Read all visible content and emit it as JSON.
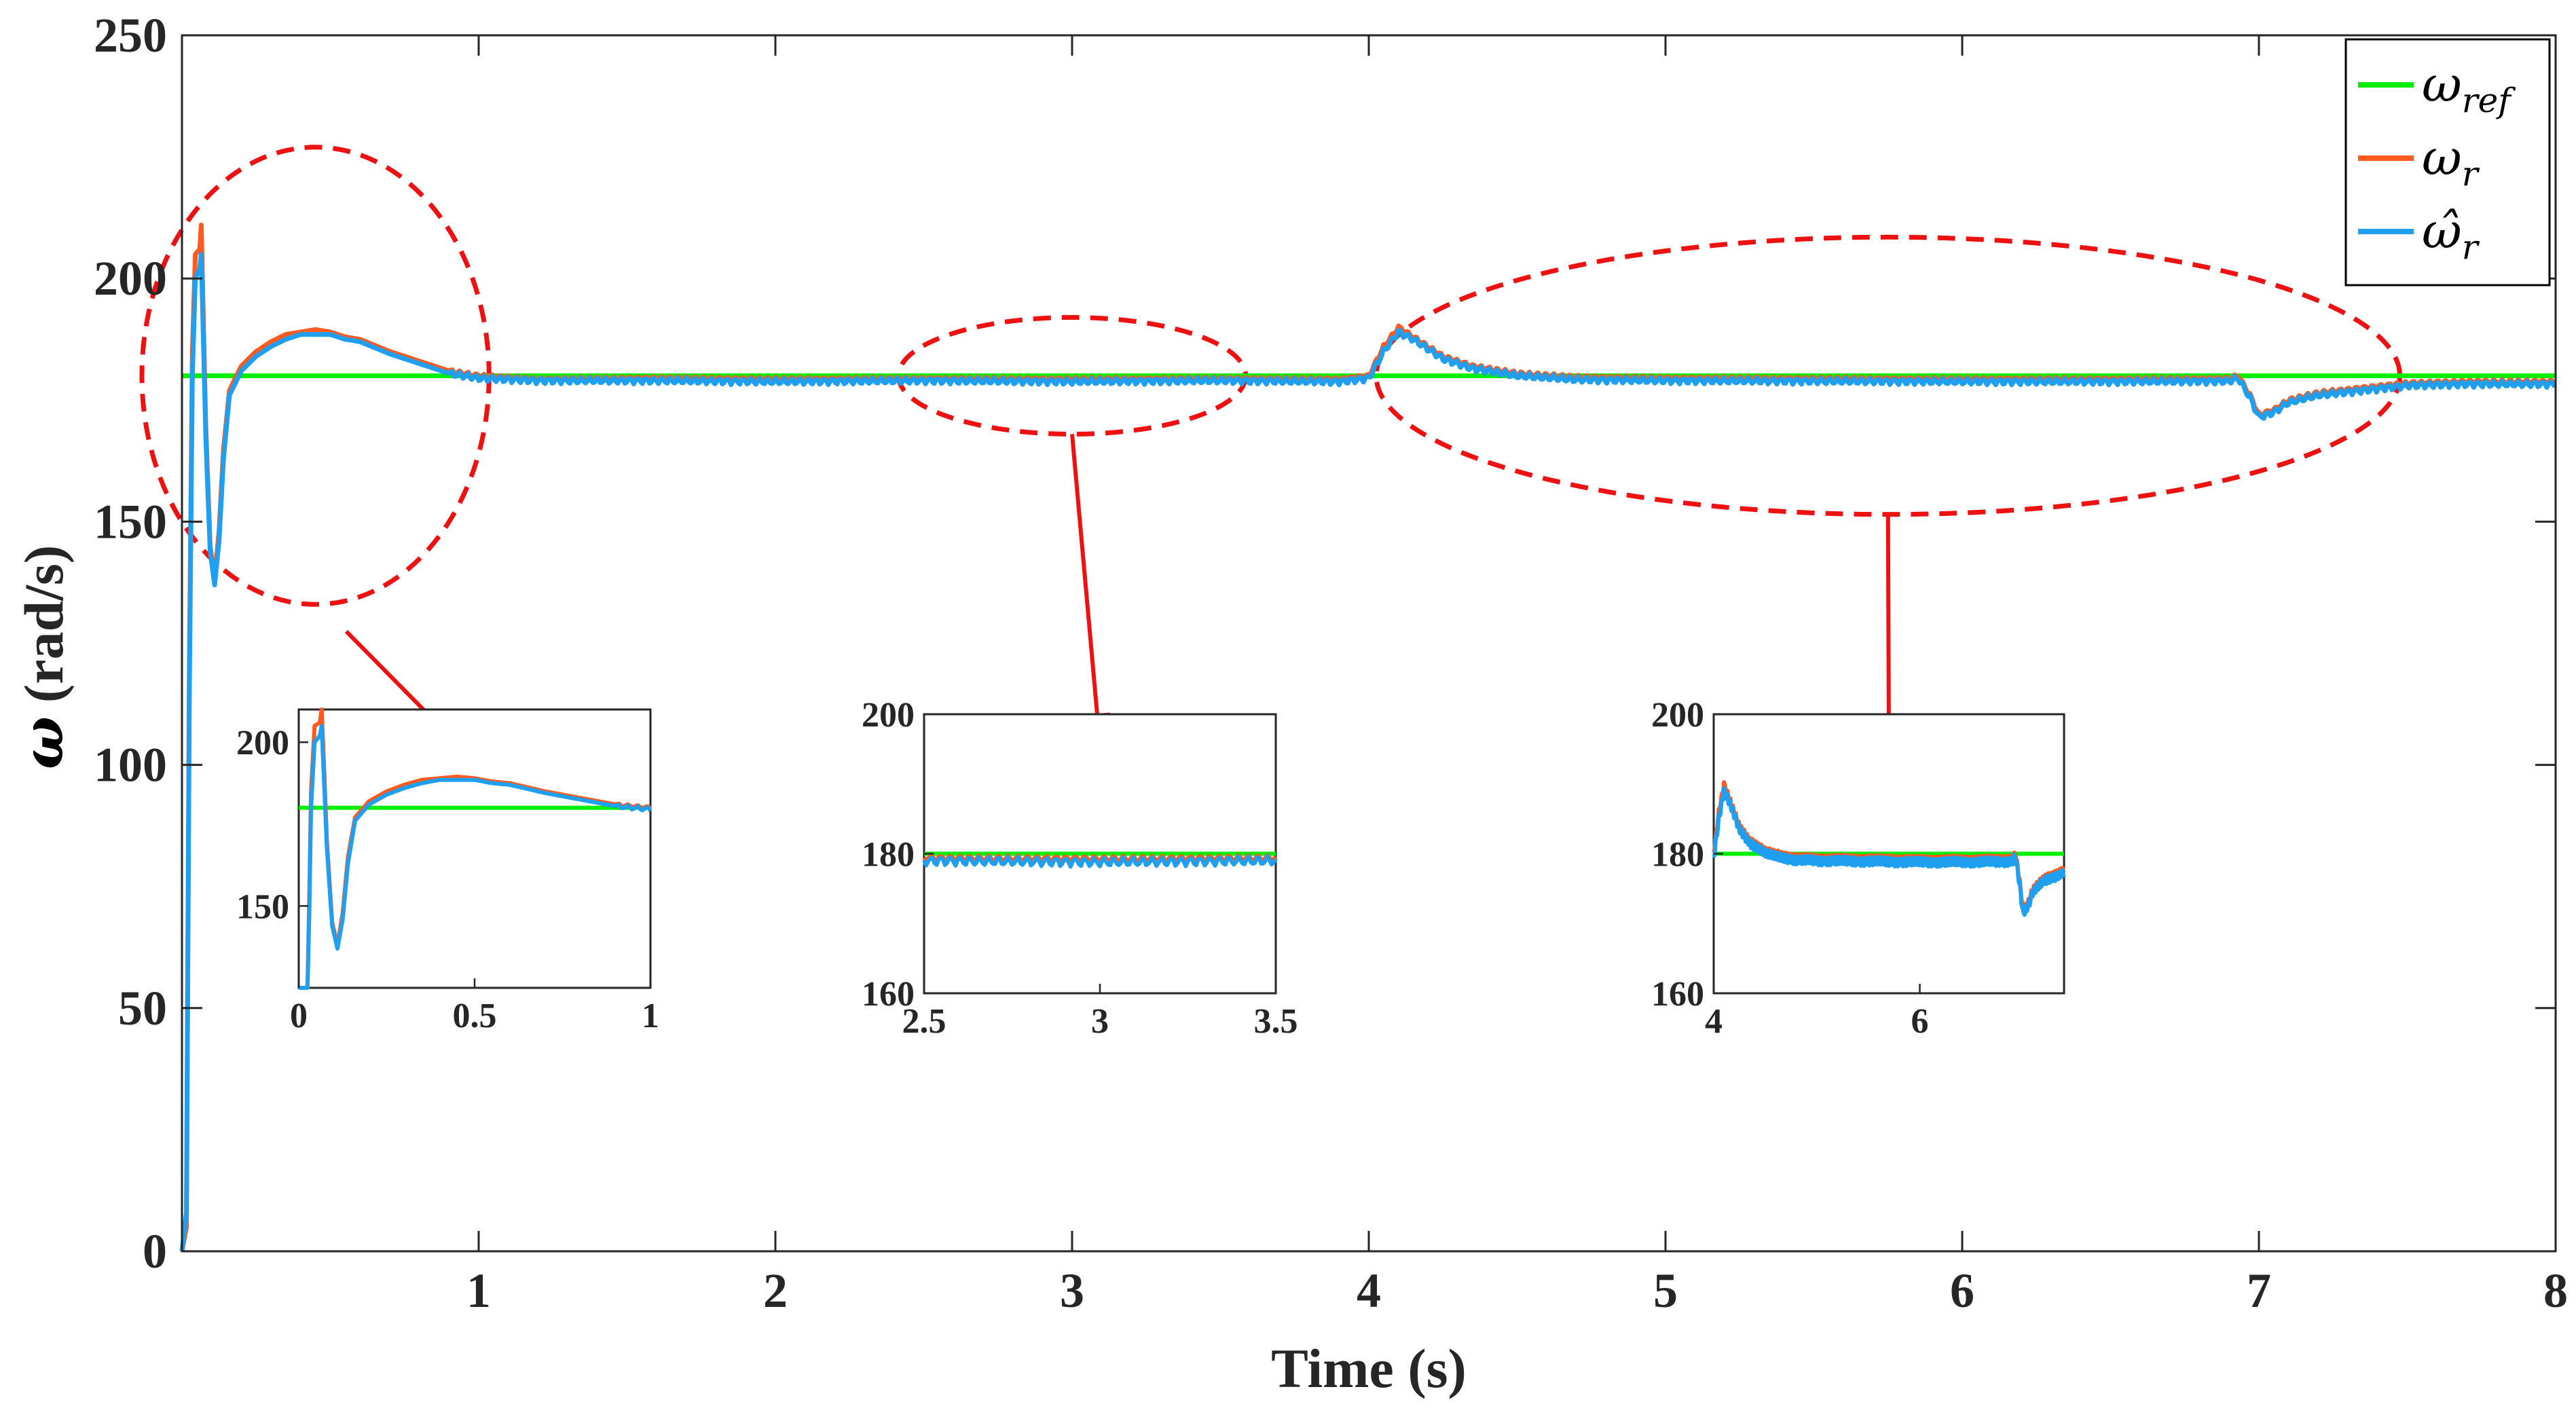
{
  "colors": {
    "ref": "#00ee00",
    "actual": "#ff5a1f",
    "estimated": "#1e9ff0",
    "annotation": "#ee1111",
    "axis": "#262626"
  },
  "chart_data": {
    "type": "line",
    "title": "",
    "xlabel": "Time (s)",
    "ylabel_symbol": "ω",
    "ylabel_unit": "(rad/s)",
    "xlim": [
      0,
      8
    ],
    "ylim": [
      0,
      250
    ],
    "xticks": [
      1,
      2,
      3,
      4,
      5,
      6,
      7,
      8
    ],
    "yticks": [
      0,
      50,
      100,
      150,
      200,
      250
    ],
    "grid": false,
    "legend_position": "top-right",
    "legend": [
      {
        "symbol": "ω",
        "subscript": "ref",
        "series": "ref"
      },
      {
        "symbol": "ω",
        "subscript": "r",
        "series": "actual"
      },
      {
        "symbol": "ω̂",
        "subscript": "r",
        "series": "estimated"
      }
    ],
    "series": [
      {
        "name": "ω_ref",
        "key": "ref",
        "points": [
          [
            0,
            180
          ],
          [
            8,
            180
          ]
        ]
      },
      {
        "name": "ω_r",
        "key": "actual",
        "points": [
          [
            0.0,
            0
          ],
          [
            0.015,
            5
          ],
          [
            0.025,
            120
          ],
          [
            0.035,
            185
          ],
          [
            0.045,
            205
          ],
          [
            0.06,
            206
          ],
          [
            0.065,
            211
          ],
          [
            0.08,
            170
          ],
          [
            0.095,
            145
          ],
          [
            0.11,
            138
          ],
          [
            0.125,
            148
          ],
          [
            0.14,
            165
          ],
          [
            0.16,
            177
          ],
          [
            0.2,
            182
          ],
          [
            0.25,
            185
          ],
          [
            0.3,
            187
          ],
          [
            0.35,
            188.5
          ],
          [
            0.4,
            189
          ],
          [
            0.45,
            189.5
          ],
          [
            0.5,
            189
          ],
          [
            0.55,
            188
          ],
          [
            0.6,
            187.5
          ],
          [
            0.7,
            185
          ],
          [
            0.8,
            183
          ],
          [
            0.9,
            181
          ],
          [
            1.0,
            180
          ],
          [
            1.2,
            179.3
          ],
          [
            1.6,
            179.5
          ],
          [
            2.0,
            179.3
          ],
          [
            2.5,
            179.4
          ],
          [
            3.0,
            179.3
          ],
          [
            3.5,
            179.4
          ],
          [
            3.9,
            179.3
          ],
          [
            4.0,
            180
          ],
          [
            4.05,
            186
          ],
          [
            4.1,
            190
          ],
          [
            4.15,
            188
          ],
          [
            4.25,
            184
          ],
          [
            4.35,
            182
          ],
          [
            4.5,
            180.5
          ],
          [
            4.7,
            179.7
          ],
          [
            5.0,
            179.5
          ],
          [
            5.5,
            179.4
          ],
          [
            6.0,
            179.3
          ],
          [
            6.5,
            179.3
          ],
          [
            6.9,
            179.4
          ],
          [
            6.93,
            180
          ],
          [
            6.97,
            176
          ],
          [
            7.0,
            172
          ],
          [
            7.05,
            173
          ],
          [
            7.1,
            175
          ],
          [
            7.2,
            176.5
          ],
          [
            7.35,
            177.5
          ],
          [
            7.5,
            178.5
          ],
          [
            7.7,
            178.8
          ],
          [
            8.0,
            178.8
          ]
        ]
      },
      {
        "name": "ω̂_r",
        "key": "estimated",
        "points": [
          [
            0.0,
            0
          ],
          [
            0.015,
            8
          ],
          [
            0.025,
            115
          ],
          [
            0.035,
            180
          ],
          [
            0.045,
            200
          ],
          [
            0.06,
            202
          ],
          [
            0.065,
            205
          ],
          [
            0.08,
            168
          ],
          [
            0.095,
            144
          ],
          [
            0.11,
            137
          ],
          [
            0.125,
            146
          ],
          [
            0.14,
            163
          ],
          [
            0.16,
            176
          ],
          [
            0.2,
            181
          ],
          [
            0.25,
            184
          ],
          [
            0.3,
            186
          ],
          [
            0.35,
            187.5
          ],
          [
            0.4,
            188.5
          ],
          [
            0.45,
            188.5
          ],
          [
            0.5,
            188.5
          ],
          [
            0.55,
            187.5
          ],
          [
            0.6,
            187
          ],
          [
            0.7,
            184.5
          ],
          [
            0.8,
            182.5
          ],
          [
            0.9,
            180.5
          ],
          [
            1.0,
            179.5
          ],
          [
            1.2,
            179
          ],
          [
            1.6,
            179
          ],
          [
            2.0,
            178.8
          ],
          [
            2.5,
            179
          ],
          [
            3.0,
            178.8
          ],
          [
            3.5,
            179
          ],
          [
            3.9,
            178.8
          ],
          [
            4.0,
            179.5
          ],
          [
            4.05,
            185
          ],
          [
            4.1,
            189
          ],
          [
            4.15,
            187.5
          ],
          [
            4.25,
            183.5
          ],
          [
            4.35,
            181.5
          ],
          [
            4.5,
            180
          ],
          [
            4.7,
            179.2
          ],
          [
            5.0,
            179
          ],
          [
            5.5,
            178.9
          ],
          [
            6.0,
            178.8
          ],
          [
            6.5,
            178.8
          ],
          [
            6.9,
            178.9
          ],
          [
            6.93,
            179.5
          ],
          [
            6.97,
            175.5
          ],
          [
            7.0,
            171.5
          ],
          [
            7.05,
            172.5
          ],
          [
            7.1,
            174.5
          ],
          [
            7.2,
            176
          ],
          [
            7.35,
            177
          ],
          [
            7.5,
            178
          ],
          [
            7.7,
            178.3
          ],
          [
            8.0,
            178.3
          ]
        ]
      }
    ],
    "highlight_regions": [
      {
        "center_x": 0.45,
        "center_y": 180,
        "width_x": 1.17,
        "height_y": 94,
        "target_inset": 0
      },
      {
        "center_x": 3.0,
        "center_y": 180,
        "width_x": 1.17,
        "height_y": 24,
        "target_inset": 1
      },
      {
        "center_x": 5.75,
        "center_y": 180,
        "width_x": 3.45,
        "height_y": 57,
        "target_inset": 2
      }
    ],
    "insets": [
      {
        "xlim": [
          0,
          1
        ],
        "ylim": [
          125,
          210
        ],
        "xticks": [
          0,
          0.5,
          1
        ],
        "xtick_labels": [
          "0",
          "0.5",
          "1"
        ],
        "yticks": [
          150,
          200
        ],
        "ytick_labels": [
          "150",
          "200"
        ]
      },
      {
        "xlim": [
          2.5,
          3.5
        ],
        "ylim": [
          160,
          200
        ],
        "xticks": [
          2.5,
          3,
          3.5
        ],
        "xtick_labels": [
          "2.5",
          "3",
          "3.5"
        ],
        "yticks": [
          160,
          180,
          200
        ],
        "ytick_labels": [
          "160",
          "180",
          "200"
        ]
      },
      {
        "xlim": [
          4,
          7.4
        ],
        "ylim": [
          160,
          200
        ],
        "xticks": [
          4,
          6
        ],
        "xtick_labels": [
          "4",
          "6"
        ],
        "yticks": [
          160,
          180,
          200
        ],
        "ytick_labels": [
          "160",
          "180",
          "200"
        ]
      }
    ]
  }
}
